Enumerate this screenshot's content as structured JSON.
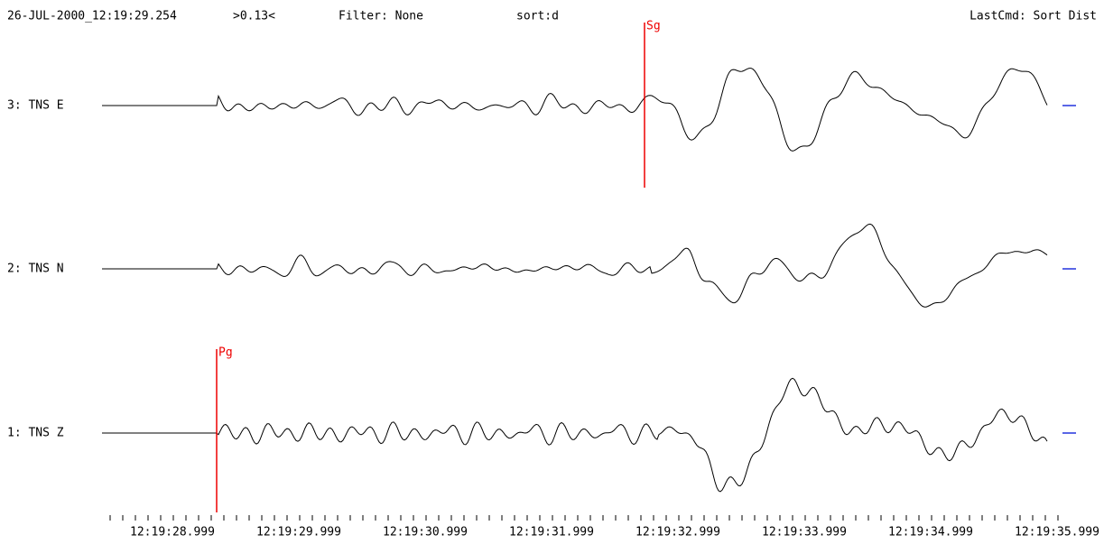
{
  "header": {
    "timestamp": "26-JUL-2000_12:19:29.254",
    "marker": ">0.13<",
    "filter": "Filter: None",
    "sort": "sort:d",
    "last_command": "LastCmd: Sort Dist"
  },
  "traces": [
    {
      "label": "3: TNS E"
    },
    {
      "label": "2: TNS N"
    },
    {
      "label": "1: TNS Z"
    }
  ],
  "picks": [
    {
      "label": "Sg"
    },
    {
      "label": "Pg"
    }
  ],
  "time_axis": {
    "labels": [
      "12:19:28.999",
      "12:19:29.999",
      "12:19:30.999",
      "12:19:31.999",
      "12:19:32.999",
      "12:19:33.999",
      "12:19:34.999",
      "12:19:35.999"
    ]
  }
}
